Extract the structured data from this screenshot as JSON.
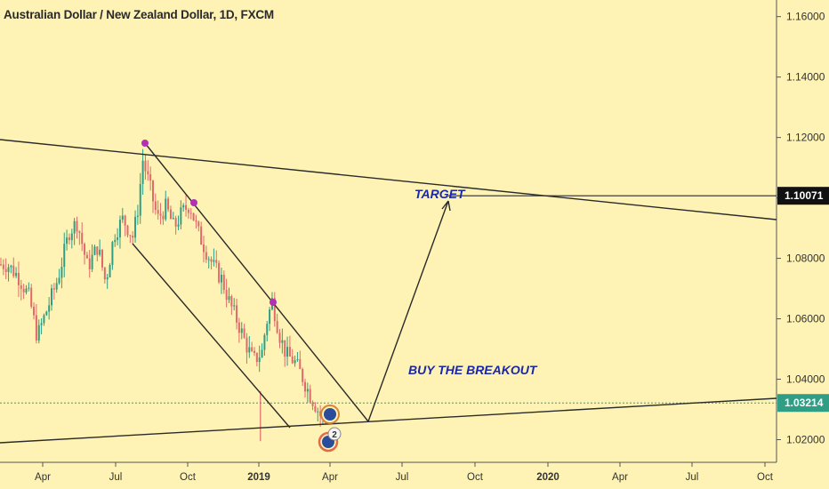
{
  "chart_data": {
    "type": "line",
    "title": "Australian Dollar / New Zealand Dollar, 1D, FXCM",
    "y_ticks": [
      "1.16000",
      "1.14000",
      "1.12000",
      "1.10000",
      "1.08000",
      "1.06000",
      "1.04000",
      "1.02000"
    ],
    "y_values": [
      1.16,
      1.14,
      1.12,
      1.1,
      1.08,
      1.06,
      1.04,
      1.02
    ],
    "ylim": [
      1.0125,
      1.1655
    ],
    "x_ticks": [
      {
        "label": "Apr",
        "bold": false
      },
      {
        "label": "Jul",
        "bold": false
      },
      {
        "label": "Oct",
        "bold": false
      },
      {
        "label": "2019",
        "bold": true
      },
      {
        "label": "Apr",
        "bold": false
      },
      {
        "label": "Jul",
        "bold": false
      },
      {
        "label": "Oct",
        "bold": false
      },
      {
        "label": "2020",
        "bold": true
      },
      {
        "label": "Apr",
        "bold": false
      },
      {
        "label": "Jul",
        "bold": false
      },
      {
        "label": "Oct",
        "bold": false
      }
    ],
    "price_path": [
      [
        "2018-02-15",
        1.078
      ],
      [
        "2018-03-01",
        1.074
      ],
      [
        "2018-03-15",
        1.067
      ],
      [
        "2018-03-25",
        1.054
      ],
      [
        "2018-04-05",
        1.062
      ],
      [
        "2018-04-20",
        1.073
      ],
      [
        "2018-05-05",
        1.089
      ],
      [
        "2018-05-15",
        1.092
      ],
      [
        "2018-05-28",
        1.077
      ],
      [
        "2018-06-10",
        1.084
      ],
      [
        "2018-06-20",
        1.072
      ],
      [
        "2018-07-01",
        1.088
      ],
      [
        "2018-07-12",
        1.093
      ],
      [
        "2018-07-25",
        1.087
      ],
      [
        "2018-08-01",
        1.098
      ],
      [
        "2018-08-06",
        1.113
      ],
      [
        "2018-08-15",
        1.104
      ],
      [
        "2018-08-25",
        1.093
      ],
      [
        "2018-09-05",
        1.097
      ],
      [
        "2018-09-15",
        1.09
      ],
      [
        "2018-09-25",
        1.095
      ],
      [
        "2018-10-05",
        1.098
      ],
      [
        "2018-10-15",
        1.089
      ],
      [
        "2018-10-25",
        1.083
      ],
      [
        "2018-11-05",
        1.077
      ],
      [
        "2018-11-15",
        1.073
      ],
      [
        "2018-11-25",
        1.065
      ],
      [
        "2018-12-05",
        1.059
      ],
      [
        "2018-12-15",
        1.052
      ],
      [
        "2018-12-25",
        1.046
      ],
      [
        "2019-01-05",
        1.049
      ],
      [
        "2019-01-10",
        1.058
      ],
      [
        "2019-01-18",
        1.066
      ],
      [
        "2019-01-28",
        1.054
      ],
      [
        "2019-02-05",
        1.048
      ],
      [
        "2019-02-15",
        1.046
      ],
      [
        "2019-02-25",
        1.041
      ],
      [
        "2019-03-05",
        1.036
      ],
      [
        "2019-03-15",
        1.031
      ],
      [
        "2019-03-22",
        1.027
      ],
      [
        "2019-03-28",
        1.029
      ]
    ],
    "wick_low": {
      "date": "2019-01-03",
      "value": 1.0195
    },
    "last_price": "1.03214",
    "last_price_value": 1.03214,
    "target_price": "1.10071",
    "target_price_value": 1.10071,
    "annotations": {
      "target": "TARGET",
      "buy": "BUY THE BREAKOUT"
    },
    "markers_label": "2",
    "colors": {
      "bull": "#2f9e85",
      "bear": "#e06a6a",
      "line": "#2a2a2a",
      "marker": "#b32fb3",
      "annotation": "#1a28a8",
      "dotted": "#2f9e85"
    }
  }
}
